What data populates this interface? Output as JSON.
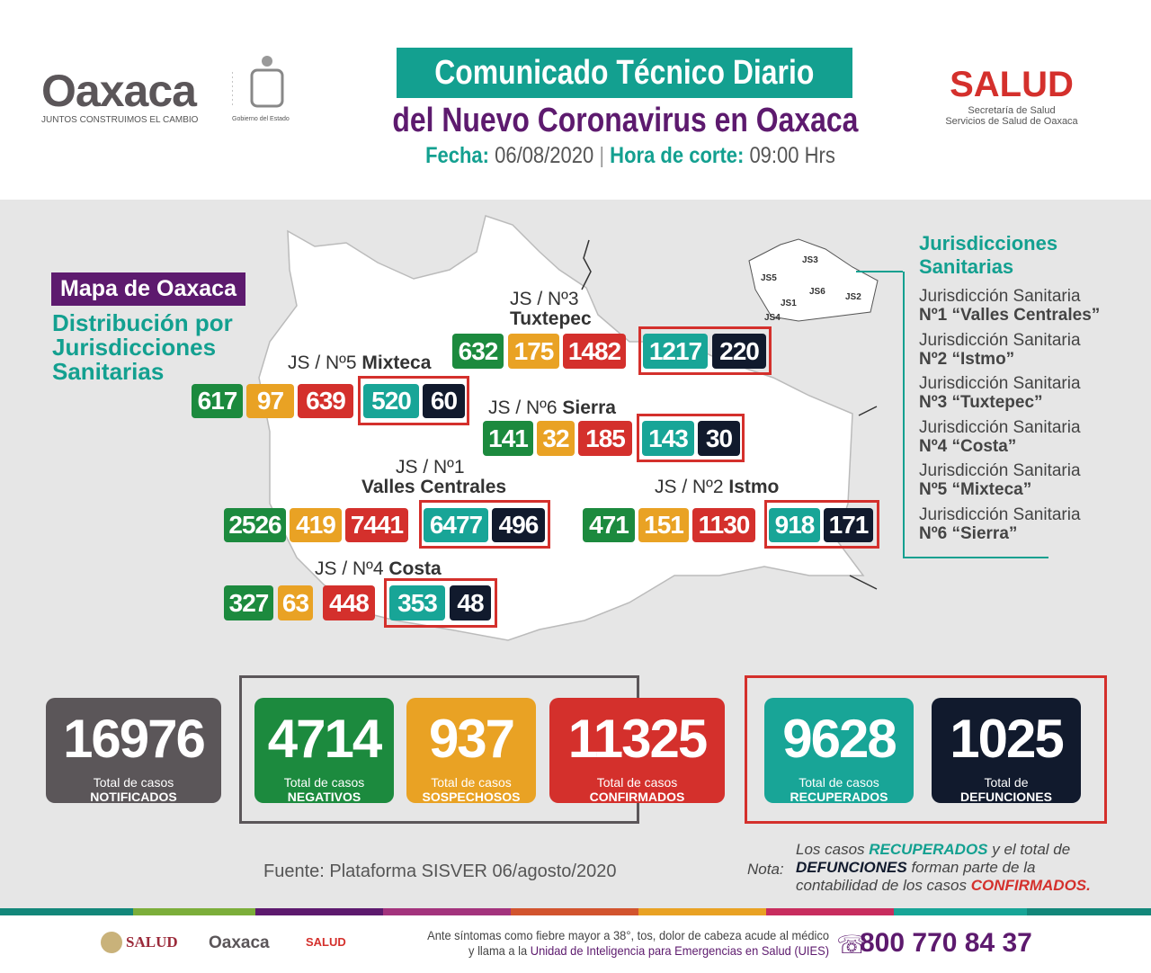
{
  "header": {
    "logo_left_text": "Oaxaca",
    "logo_left_slogan": "JUNTOS CONSTRUIMOS EL CAMBIO",
    "gov_text": "Gobierno del Estado",
    "title_line1": "Comunicado Técnico Diario",
    "title_line2": "del Nuevo Coronavirus en Oaxaca",
    "fecha_label": "Fecha:",
    "fecha": "06/08/2020",
    "hora_label": "Hora de corte:",
    "hora": "09:00 Hrs",
    "salud_logo": "SALUD",
    "salud_sub1": "Secretaría de Salud",
    "salud_sub2": "Servicios de Salud de Oaxaca"
  },
  "map": {
    "title": "Mapa de Oaxaca",
    "subtitle": "Distribución por Jurisdicciones Sanitarias",
    "regions": [
      {
        "id": "tuxtepec",
        "label1": "JS / Nº3",
        "label2": "Tuxtepec",
        "negativos": "632",
        "sospechosos": "175",
        "confirmados": "1482",
        "recuperados": "1217",
        "defunciones": "220"
      },
      {
        "id": "mixteca",
        "label1": "JS / Nº5",
        "label2": "Mixteca",
        "negativos": "617",
        "sospechosos": "97",
        "confirmados": "639",
        "recuperados": "520",
        "defunciones": "60"
      },
      {
        "id": "sierra",
        "label1": "JS / Nº6",
        "label2": "Sierra",
        "negativos": "141",
        "sospechosos": "32",
        "confirmados": "185",
        "recuperados": "143",
        "defunciones": "30"
      },
      {
        "id": "valles",
        "label1": "JS / Nº1",
        "label2": "Valles Centrales",
        "negativos": "2526",
        "sospechosos": "419",
        "confirmados": "7441",
        "recuperados": "6477",
        "defunciones": "496"
      },
      {
        "id": "istmo",
        "label1": "JS / Nº2",
        "label2": "Istmo",
        "negativos": "471",
        "sospechosos": "151",
        "confirmados": "1130",
        "recuperados": "918",
        "defunciones": "171"
      },
      {
        "id": "costa",
        "label1": "JS / Nº4",
        "label2": "Costa",
        "negativos": "327",
        "sospechosos": "63",
        "confirmados": "448",
        "recuperados": "353",
        "defunciones": "48"
      }
    ],
    "mini_labels": [
      "JS3",
      "JS5",
      "JS6",
      "JS2",
      "JS1",
      "JS4"
    ]
  },
  "legend": {
    "title": "Jurisdicciones Sanitarias",
    "items": [
      {
        "l1": "Jurisdicción Sanitaria",
        "l2": "Nº1 “Valles Centrales”"
      },
      {
        "l1": "Jurisdicción Sanitaria",
        "l2": "Nº2 “Istmo”"
      },
      {
        "l1": "Jurisdicción Sanitaria",
        "l2": "Nº3 “Tuxtepec”"
      },
      {
        "l1": "Jurisdicción Sanitaria",
        "l2": "Nº4 “Costa”"
      },
      {
        "l1": "Jurisdicción Sanitaria",
        "l2": "Nº5 “Mixteca”"
      },
      {
        "l1": "Jurisdicción Sanitaria",
        "l2": "Nº6 “Sierra”"
      }
    ]
  },
  "totals": [
    {
      "value": "16976",
      "l1": "Total de casos",
      "l2": "NOTIFICADOS"
    },
    {
      "value": "4714",
      "l1": "Total de casos",
      "l2": "NEGATIVOS"
    },
    {
      "value": "937",
      "l1": "Total de casos",
      "l2": "SOSPECHOSOS"
    },
    {
      "value": "11325",
      "l1": "Total de casos",
      "l2": "CONFIRMADOS"
    },
    {
      "value": "9628",
      "l1": "Total de casos",
      "l2": "RECUPERADOS"
    },
    {
      "value": "1025",
      "l1": "Total de",
      "l2": "DEFUNCIONES"
    }
  ],
  "source": "Fuente: Plataforma SISVER 06/agosto/2020",
  "note": {
    "label": "Nota:",
    "p1": "Los casos ",
    "p2": "RECUPERADOS",
    "p3": " y el total de",
    "p4": "DEFUNCIONES",
    "p5": " forman parte de la",
    "p6": "contabilidad de los casos ",
    "p7": "CONFIRMADOS."
  },
  "footer": {
    "salud": "SALUD",
    "oaxaca": "Oaxaca",
    "salud2": "SALUD",
    "msg1": "Ante síntomas como fiebre mayor a 38°, tos, dolor de cabeza acude al médico",
    "msg2a": "y llama a la ",
    "msg2b": "Unidad de Inteligencia para Emergencias en Salud (UIES)",
    "phone": "800 770 84 37"
  },
  "colors": {
    "negativos": "#1c8a3e",
    "sospechosos": "#e9a224",
    "confirmados": "#d4302c",
    "recuperados": "#18a597",
    "defunciones": "#111a2d",
    "notificados": "#5b5659",
    "title_teal": "#13a090",
    "title_purple": "#5d1a6e"
  }
}
